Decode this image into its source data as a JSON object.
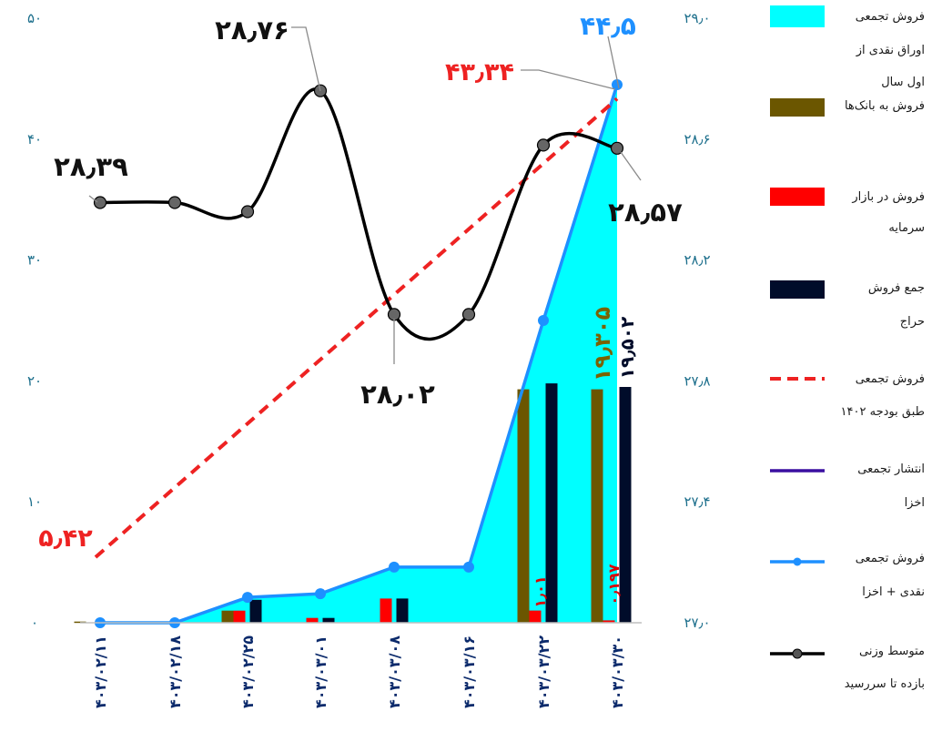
{
  "chart_data": {
    "type": "combo",
    "categories": [
      "۴۰۳/۰۲/۱۱",
      "۴۰۳/۰۲/۱۸",
      "۴۰۳/۰۲/۲۵",
      "۴۰۳/۰۳/۰۱",
      "۴۰۳/۰۳/۰۸",
      "۴۰۳/۰۳/۱۶",
      "۴۰۳/۰۳/۲۲",
      "۴۰۳/۰۳/۳۰"
    ],
    "y_left": {
      "ticks": [
        "۰",
        "۱۰",
        "۲۰",
        "۳۰",
        "۴۰",
        "۵۰"
      ],
      "ylim": [
        0,
        50
      ]
    },
    "y_right": {
      "ticks": [
        "۲۷٫۰",
        "۲۷٫۴",
        "۲۷٫۸",
        "۲۸٫۲",
        "۲۸٫۶",
        "۲۹٫۰"
      ],
      "ylim": [
        27.0,
        29.0
      ]
    },
    "series": [
      {
        "name": "فروش تجمعی اوراق نقدی از اول سال",
        "type": "area",
        "color": "#00ffff",
        "axis": "left",
        "values": [
          0,
          0,
          2.1,
          2.4,
          4.6,
          4.6,
          25.0,
          44.5
        ]
      },
      {
        "name": "فروش به بانک‌ها",
        "type": "bar",
        "color": "#6b5600",
        "axis": "left",
        "values": [
          0.1,
          0,
          1.0,
          0,
          0,
          0,
          19.305,
          19.305
        ]
      },
      {
        "name": "فروش در بازار سرمایه",
        "type": "bar",
        "color": "#ff0000",
        "axis": "left",
        "values": [
          0,
          0,
          1.0,
          0.4,
          2.0,
          0,
          1.01,
          0.197
        ]
      },
      {
        "name": "جمع فروش حراج",
        "type": "bar",
        "color": "#000c2a",
        "axis": "left",
        "values": [
          0,
          0,
          1.9,
          0.4,
          2.0,
          0,
          19.8,
          19.502
        ]
      },
      {
        "name": "فروش تجمعی طبق بودجه ۱۴۰۲",
        "type": "line-dashed",
        "color": "#ee2222",
        "axis": "left",
        "values": [
          5.42,
          null,
          null,
          null,
          null,
          null,
          null,
          43.34
        ]
      },
      {
        "name": "فروش تجمعی نقدی + اخزا",
        "type": "line",
        "color": "#1e90ff",
        "axis": "left",
        "values": [
          0,
          0,
          2.1,
          2.4,
          4.6,
          4.6,
          25.0,
          44.5
        ]
      },
      {
        "name": "متوسط وزنی بازده تا سررسید",
        "type": "line-smooth",
        "color": "#000000",
        "axis": "right",
        "values": [
          28.39,
          28.39,
          28.36,
          28.76,
          28.02,
          28.02,
          28.58,
          28.57
        ]
      }
    ],
    "legend_placement": "right"
  },
  "labels": {
    "avg_first": "۲۸٫۳۹",
    "avg_peak": "۲۸٫۷۶",
    "avg_low": "۲۸٫۰۲",
    "avg_last": "۲۸٫۵۷",
    "budget_first": "۵٫۴۲",
    "budget_last": "۴۳٫۳۴",
    "total_last": "۴۴٫۵",
    "banks_last": "۱۹٫۳۰۵",
    "auction_last": "۱۹٫۵۰۲",
    "market_22": "۱٫۰۱",
    "market_30": "۰٫۱۹۷"
  },
  "legend": [
    {
      "text1": "فروش تجمعی",
      "text2": "اوراق نقدی از",
      "text3": "اول سال"
    },
    {
      "text1": "فروش به بانک‌ها"
    },
    {
      "text1": "فروش در بازار",
      "text2": "سرمایه"
    },
    {
      "text1": "جمع فروش",
      "text2": "حراج"
    },
    {
      "text1": "فروش تجمعی",
      "text2": "طبق بودجه ۱۴۰۲"
    },
    {
      "text1": "انتشار تجمعی",
      "text2": "اخزا"
    },
    {
      "text1": "فروش تجمعی",
      "text2": "نقدی + اخزا"
    },
    {
      "text1": "متوسط وزنی",
      "text2": "بازده تا سررسید"
    }
  ]
}
